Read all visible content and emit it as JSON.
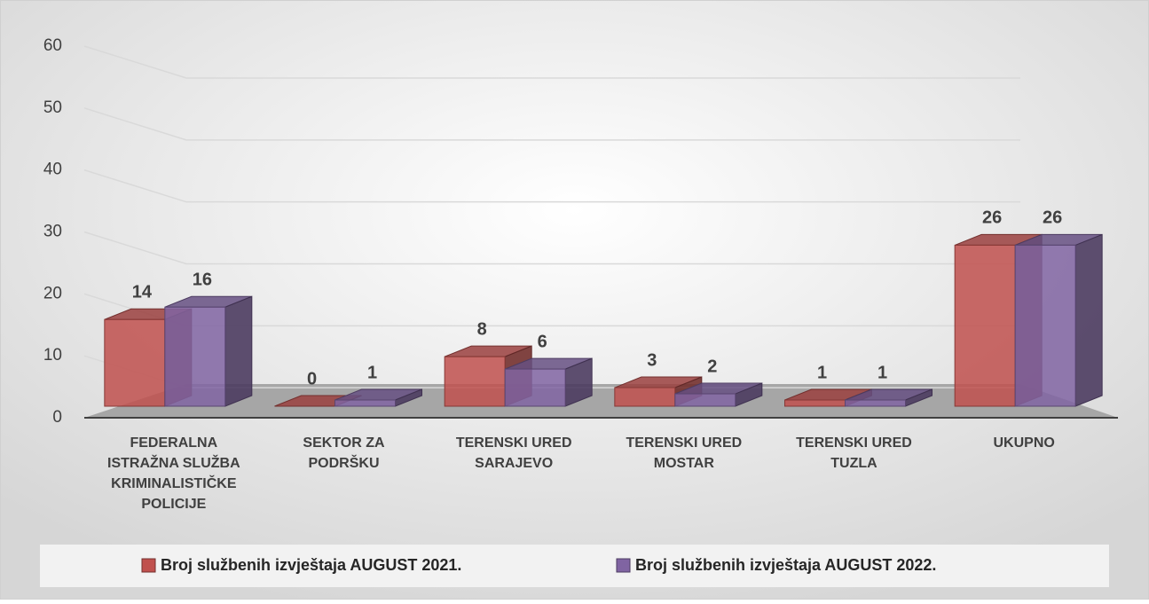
{
  "chart_data": {
    "type": "bar3d",
    "categories": [
      "FEDERALNA ISTRAŽNA SLUŽBA KRIMINALISTIČKE POLICIJE",
      "SEKTOR ZA PODRŠKU",
      "TERENSKI URED SARAJEVO",
      "TERENSKI URED MOSTAR",
      "TERENSKI URED TUZLA",
      "UKUPNO"
    ],
    "series": [
      {
        "name": "Broj službenih izvještaja AUGUST 2021.",
        "color": "#c0504d",
        "values": [
          14,
          0,
          8,
          3,
          1,
          26
        ]
      },
      {
        "name": "Broj službenih izvještaja AUGUST  2022.",
        "color": "#8064a2",
        "values": [
          16,
          1,
          6,
          2,
          1,
          26
        ]
      }
    ],
    "ylim": [
      0,
      60
    ],
    "yticks": [
      0,
      10,
      20,
      30,
      40,
      50,
      60
    ],
    "grid": true,
    "legend": "bottom"
  }
}
